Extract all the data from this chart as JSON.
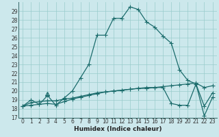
{
  "title": "",
  "xlabel": "Humidex (Indice chaleur)",
  "bg_color": "#cce8ec",
  "grid_color": "#99cccc",
  "line_color": "#1a6b6b",
  "xlim": [
    -0.5,
    23.5
  ],
  "ylim": [
    17,
    30
  ],
  "yticks": [
    17,
    18,
    19,
    20,
    21,
    22,
    23,
    24,
    25,
    26,
    27,
    28,
    29
  ],
  "xticks": [
    0,
    1,
    2,
    3,
    4,
    5,
    6,
    7,
    8,
    9,
    10,
    11,
    12,
    13,
    14,
    15,
    16,
    17,
    18,
    19,
    20,
    21,
    22,
    23
  ],
  "series1_x": [
    0,
    1,
    2,
    3,
    4,
    5,
    6,
    7,
    8,
    9,
    10,
    11,
    12,
    13,
    14,
    15,
    16,
    17,
    18,
    19,
    20,
    21,
    22,
    23
  ],
  "series1_y": [
    18.3,
    19.0,
    18.5,
    19.5,
    18.4,
    19.2,
    20.0,
    21.5,
    23.0,
    26.3,
    26.3,
    28.2,
    28.2,
    29.5,
    29.2,
    27.8,
    27.2,
    26.2,
    25.4,
    22.4,
    21.2,
    20.8,
    18.3,
    19.8
  ],
  "series2_x": [
    0,
    1,
    2,
    3,
    4,
    5,
    6,
    7,
    8,
    9,
    10,
    11,
    12,
    13,
    14,
    15,
    16,
    17,
    18,
    19,
    20,
    21,
    22,
    23
  ],
  "series2_y": [
    18.3,
    18.4,
    18.5,
    18.6,
    18.5,
    18.8,
    19.1,
    19.3,
    19.5,
    19.7,
    19.9,
    20.0,
    20.1,
    20.2,
    20.3,
    20.3,
    20.4,
    20.4,
    18.6,
    18.4,
    18.4,
    20.8,
    17.2,
    19.3
  ],
  "series3_x": [
    0,
    1,
    2,
    3,
    4,
    5,
    6,
    7,
    8,
    9,
    10,
    11,
    12,
    13,
    14,
    15,
    16,
    17,
    18,
    19,
    20,
    21,
    22,
    23
  ],
  "series3_y": [
    18.3,
    18.7,
    18.8,
    18.9,
    18.9,
    19.1,
    19.2,
    19.4,
    19.6,
    19.8,
    19.9,
    20.0,
    20.1,
    20.2,
    20.3,
    20.4,
    20.4,
    20.5,
    20.6,
    20.7,
    20.8,
    20.9,
    20.4,
    20.6
  ],
  "triangle_x": 3,
  "triangle_y": 19.7,
  "marker_size": 3,
  "line_width": 0.9,
  "tick_fontsize": 5.5,
  "label_fontsize": 6.5
}
